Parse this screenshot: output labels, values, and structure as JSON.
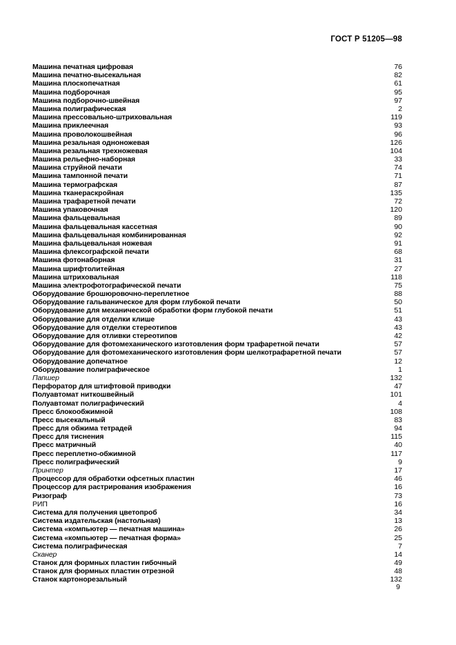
{
  "header": {
    "title": "ГОСТ Р 51205—98"
  },
  "footer": {
    "page_number": "9"
  },
  "index": {
    "entries": [
      {
        "term": "Машина печатная цифровая",
        "page": 76,
        "style": "bold"
      },
      {
        "term": "Машина печатно-высекальная",
        "page": 82,
        "style": "bold"
      },
      {
        "term": "Машина плоскопечатная",
        "page": 61,
        "style": "bold"
      },
      {
        "term": "Машина подборочная",
        "page": 95,
        "style": "bold"
      },
      {
        "term": "Машина подборочно-швейная",
        "page": 97,
        "style": "bold"
      },
      {
        "term": "Машина полиграфическая",
        "page": 2,
        "style": "bold"
      },
      {
        "term": "Машина прессовально-штриховальная",
        "page": 119,
        "style": "bold"
      },
      {
        "term": "Машина приклеечная",
        "page": 93,
        "style": "bold"
      },
      {
        "term": "Машина проволокошвейная",
        "page": 96,
        "style": "bold"
      },
      {
        "term": "Машина резальная одноножевая",
        "page": 126,
        "style": "bold"
      },
      {
        "term": "Машина резальная трехножевая",
        "page": 104,
        "style": "bold"
      },
      {
        "term": "Машина рельефно-наборная",
        "page": 33,
        "style": "bold"
      },
      {
        "term": "Машина струйной печати",
        "page": 74,
        "style": "bold"
      },
      {
        "term": "Машина тампонной печати",
        "page": 71,
        "style": "bold"
      },
      {
        "term": "Машина термографская",
        "page": 87,
        "style": "bold"
      },
      {
        "term": "Машина тканераскройная",
        "page": 135,
        "style": "bold"
      },
      {
        "term": "Машина трафаретной печати",
        "page": 72,
        "style": "bold"
      },
      {
        "term": "Машина упаковочная",
        "page": 120,
        "style": "bold"
      },
      {
        "term": "Машина фальцевальная",
        "page": 89,
        "style": "bold"
      },
      {
        "term": "Машина фальцевальная кассетная",
        "page": 90,
        "style": "bold"
      },
      {
        "term": "Машина фальцевальная комбинированная",
        "page": 92,
        "style": "bold"
      },
      {
        "term": "Машина фальцевальная ножевая",
        "page": 91,
        "style": "bold"
      },
      {
        "term": "Машина флексографской печати",
        "page": 68,
        "style": "bold"
      },
      {
        "term": "Машина фотонаборная",
        "page": 31,
        "style": "bold"
      },
      {
        "term": "Машина шрифтолитейная",
        "page": 27,
        "style": "bold"
      },
      {
        "term": "Машина штриховальная",
        "page": 118,
        "style": "bold"
      },
      {
        "term": "Машина электрофотографической печати",
        "page": 75,
        "style": "bold"
      },
      {
        "term": "Оборудование брошюровочно-переплетное",
        "page": 88,
        "style": "bold"
      },
      {
        "term": "Оборудование гальваническое для форм глубокой печати",
        "page": 50,
        "style": "bold"
      },
      {
        "term": "Оборудование для механической обработки форм глубокой печати",
        "page": 51,
        "style": "bold"
      },
      {
        "term": "Оборудование для отделки клише",
        "page": 43,
        "style": "bold"
      },
      {
        "term": "Оборудование для отделки стереотипов",
        "page": 43,
        "style": "bold"
      },
      {
        "term": "Оборудование для отливки стереотипов",
        "page": 42,
        "style": "bold"
      },
      {
        "term": "Оборудование для фотомеханического изготовления форм трафаретной печати",
        "page": 57,
        "style": "bold"
      },
      {
        "term": "Оборудование для фотомеханического изготовления форм шелкотрафаретной печати",
        "page": 57,
        "style": "bold"
      },
      {
        "term": "Оборудование допечатное",
        "page": 12,
        "style": "bold"
      },
      {
        "term": "Оборудование полиграфическое",
        "page": 1,
        "style": "bold"
      },
      {
        "term": "Папшер",
        "page": 132,
        "style": "italic"
      },
      {
        "term": "Перфоратор для штифтовой приводки",
        "page": 47,
        "style": "bold"
      },
      {
        "term": "Полуавтомат ниткошвейный",
        "page": 101,
        "style": "bold"
      },
      {
        "term": "Полуавтомат полиграфический",
        "page": 4,
        "style": "bold"
      },
      {
        "term": "Пресс блокообжимной",
        "page": 108,
        "style": "bold"
      },
      {
        "term": "Пресс высекальный",
        "page": 83,
        "style": "bold"
      },
      {
        "term": "Пресс для обжима тетрадей",
        "page": 94,
        "style": "bold"
      },
      {
        "term": "Пресс для тиснения",
        "page": 115,
        "style": "bold"
      },
      {
        "term": "Пресс матричный",
        "page": 40,
        "style": "bold"
      },
      {
        "term": "Пресс переплетно-обжимной",
        "page": 117,
        "style": "bold"
      },
      {
        "term": "Пресс полиграфический",
        "page": 9,
        "style": "bold"
      },
      {
        "term": "Принтер",
        "page": 17,
        "style": "italic"
      },
      {
        "term": "Процессор для обработки офсетных пластин",
        "page": 46,
        "style": "bold"
      },
      {
        "term": "Процессор для растрирования изображения",
        "page": 16,
        "style": "bold"
      },
      {
        "term": "Ризограф",
        "page": 73,
        "style": "bold"
      },
      {
        "term": "РИП",
        "page": 16,
        "style": "regular"
      },
      {
        "term": "Система для получения цветопроб",
        "page": 34,
        "style": "bold"
      },
      {
        "term": "Система издательская (настольная)",
        "page": 13,
        "style": "bold"
      },
      {
        "term": "Система «компьютер — печатная машина»",
        "page": 26,
        "style": "bold"
      },
      {
        "term": "Система «компьютер — печатная форма»",
        "page": 25,
        "style": "bold"
      },
      {
        "term": "Система полиграфическая",
        "page": 7,
        "style": "bold"
      },
      {
        "term": "Сканер",
        "page": 14,
        "style": "italic"
      },
      {
        "term": "Станок для формных пластин гибочный",
        "page": 49,
        "style": "bold"
      },
      {
        "term": "Станок для формных пластин отрезной",
        "page": 48,
        "style": "bold"
      },
      {
        "term": "Станок картонорезальный",
        "page": 132,
        "style": "bold"
      }
    ]
  }
}
